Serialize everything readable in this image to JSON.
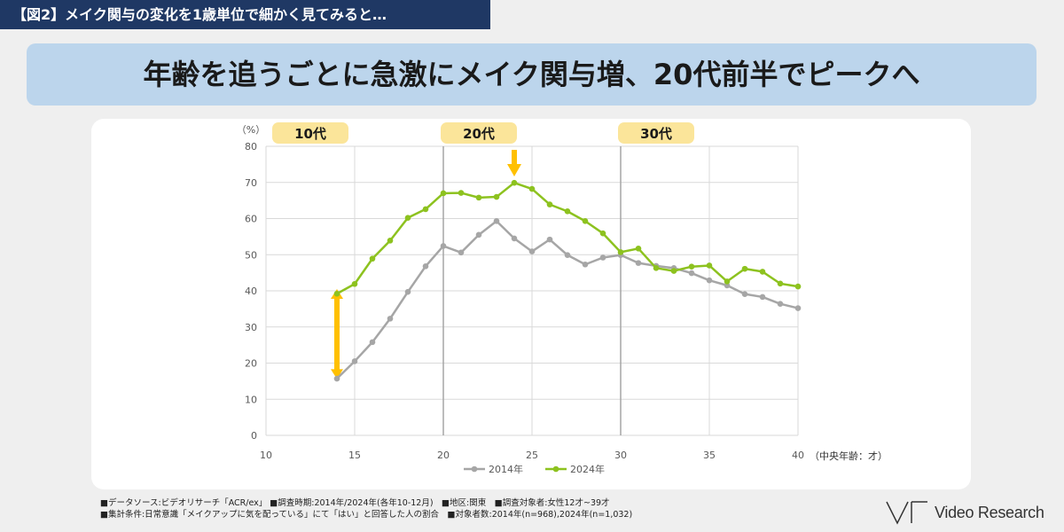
{
  "figure_label": "【図2】メイク関与の変化を1歳単位で細かく見てみると…",
  "headline": "年齢を追うごとに急激にメイク関与増、20代前半でピークへ",
  "chart_data": {
    "type": "line",
    "x": [
      14,
      15,
      16,
      17,
      18,
      19,
      20,
      21,
      22,
      23,
      24,
      25,
      26,
      27,
      28,
      29,
      30,
      31,
      32,
      33,
      34,
      35,
      36,
      37,
      38,
      39,
      40
    ],
    "series": [
      {
        "name": "2014年",
        "color": "#a6a6a6",
        "values": [
          15.7,
          20.5,
          25.8,
          32.3,
          39.7,
          46.8,
          52.4,
          50.6,
          55.5,
          59.3,
          54.5,
          50.9,
          54.2,
          49.9,
          47.3,
          49.2,
          49.9,
          47.7,
          46.9,
          46.3,
          44.9,
          42.9,
          41.5,
          39.1,
          38.3,
          36.4,
          35.2
        ]
      },
      {
        "name": "2024年",
        "color": "#8dc21f",
        "values": [
          39.2,
          41.9,
          48.9,
          53.9,
          60.2,
          62.6,
          67.0,
          67.1,
          65.8,
          66.0,
          69.9,
          68.2,
          63.9,
          62.0,
          59.3,
          55.9,
          50.7,
          51.7,
          46.3,
          45.5,
          46.7,
          47.0,
          42.6,
          46.1,
          45.3,
          42.0,
          41.2
        ]
      }
    ],
    "xlim": [
      10,
      40
    ],
    "ylim": [
      0,
      80
    ],
    "x_ticks": [
      "10",
      "15",
      "20",
      "25",
      "30",
      "35",
      "40"
    ],
    "y_ticks": [
      "0",
      "10",
      "20",
      "30",
      "40",
      "50",
      "60",
      "70",
      "80"
    ],
    "ylabel": "（%）",
    "xlabel": "（中央年齢：才）",
    "grid": true,
    "legend_position": "bottom-center",
    "age_groups": [
      "10代",
      "20代",
      "30代"
    ],
    "age_group_color": "#fbe59a",
    "arrow_color": "#ffc000"
  },
  "footnotes": [
    "■データソース:ビデオリサーチ「ACR/ex」 ■調査時期:2014年/2024年(各年10-12月)　■地区:関東　■調査対象者:女性12才~39才",
    "■集計条件:日常意識「メイクアップに気を配っている」にて「はい」と回答した人の割合　■対象者数:2014年(n=968),2024年(n=1,032)"
  ],
  "logo_text": "Video Research",
  "logo_icon": "vr-mark-icon"
}
